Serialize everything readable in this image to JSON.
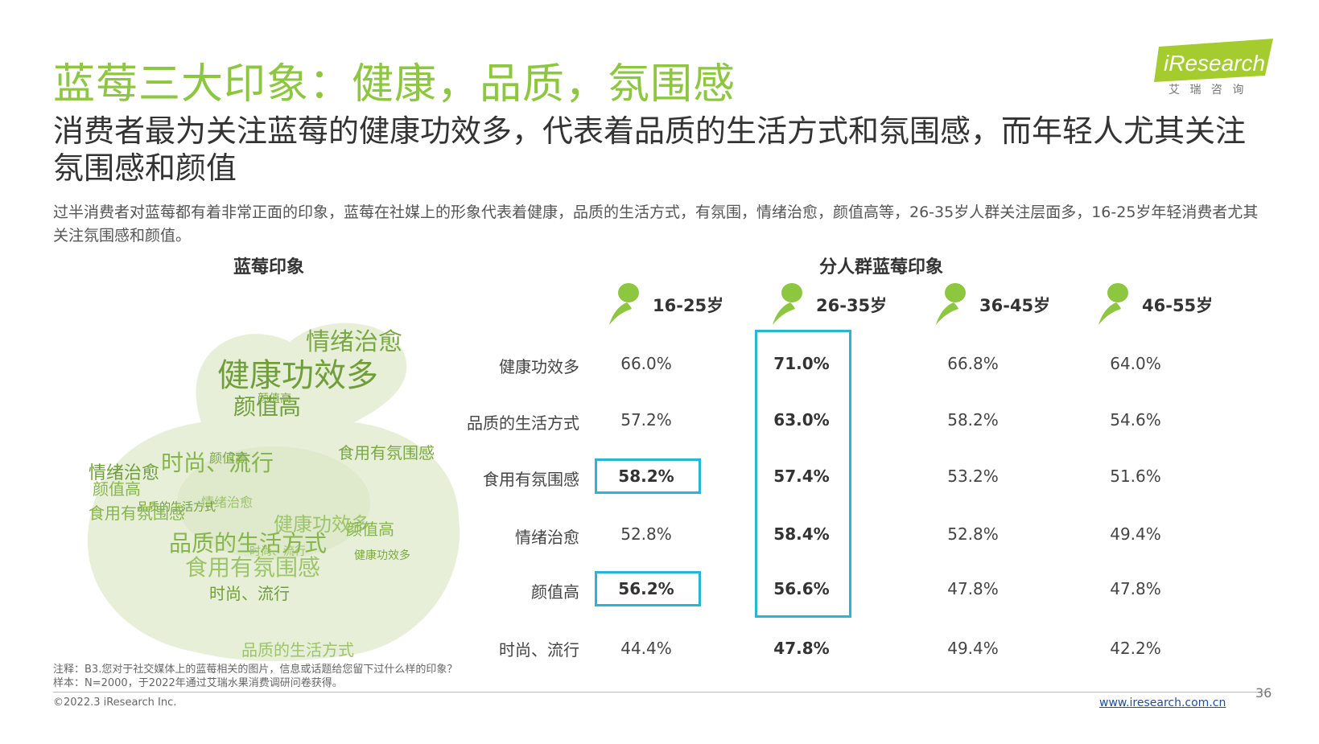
{
  "header": {
    "title": "蓝莓三大印象：健康，品质，氛围感",
    "subtitle": "消费者最为关注蓝莓的健康功效多，代表着品质的生活方式和氛围感，而年轻人尤其关注氛围感和颜值",
    "description": "过半消费者对蓝莓都有着非常正面的印象，蓝莓在社媒上的形象代表着健康，品质的生活方式，有氛围，情绪治愈，颜值高等，26-35岁人群关注层面多，16-25岁年轻消费者尤其关注氛围感和颜值。"
  },
  "logo": {
    "brand": "iResearch",
    "sub": "艾 瑞 咨 询",
    "color": "#a4cc2f"
  },
  "sections": {
    "left_title": "蓝莓印象",
    "right_title": "分人群蓝莓印象"
  },
  "word_cloud": {
    "words": [
      "健康功效多",
      "品质的生活方式",
      "食用有氛围感",
      "情绪治愈",
      "颜值高",
      "时尚、流行",
      "健康功效多",
      "颜值高",
      "情绪治愈",
      "颜值高",
      "品质的生活方式",
      "食用有氛围感",
      "时尚、流行",
      "颜值高",
      "情绪治愈",
      "健康功效多",
      "品质的生活方式",
      "食用有氛围感",
      "时尚、流行",
      "颜值高"
    ]
  },
  "chart_data": {
    "type": "table",
    "title": "分人群蓝莓印象",
    "columns": [
      "16-25岁",
      "26-35岁",
      "36-45岁",
      "46-55岁"
    ],
    "rows": [
      {
        "label": "健康功效多",
        "values": [
          "66.0%",
          "71.0%",
          "66.8%",
          "64.0%"
        ]
      },
      {
        "label": "品质的生活方式",
        "values": [
          "57.2%",
          "63.0%",
          "58.2%",
          "54.6%"
        ]
      },
      {
        "label": "食用有氛围感",
        "values": [
          "58.2%",
          "57.4%",
          "53.2%",
          "51.6%"
        ]
      },
      {
        "label": "情绪治愈",
        "values": [
          "52.8%",
          "58.4%",
          "52.8%",
          "49.4%"
        ]
      },
      {
        "label": "颜值高",
        "values": [
          "56.2%",
          "56.6%",
          "47.8%",
          "47.8%"
        ]
      },
      {
        "label": "时尚、流行",
        "values": [
          "44.4%",
          "47.8%",
          "49.4%",
          "42.2%"
        ]
      }
    ],
    "highlight_color": "#29b6d6",
    "accent_color": "#8dc63f"
  },
  "footer": {
    "note1": "注释：B3.您对于社交媒体上的蓝莓相关的图片，信息或话题给您留下过什么样的印象？",
    "note2": "样本：N=2000，于2022年通过艾瑞水果消费调研问卷获得。",
    "copyright": "©2022.3 iResearch Inc.",
    "website": "www.iresearch.com.cn",
    "page": "36"
  }
}
